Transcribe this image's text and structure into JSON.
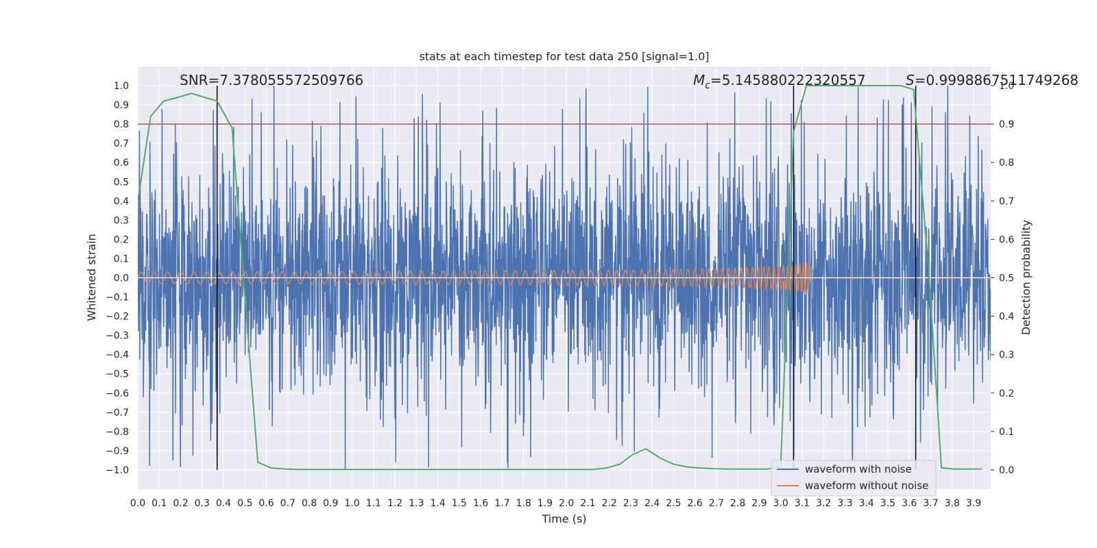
{
  "chart_data": {
    "type": "line",
    "title": "stats at each timestep for test data 250 [signal=1.0]",
    "xlabel": "Time (s)",
    "ylabel": "Whitened strain",
    "y2label": "Detection probability",
    "xlim": [
      0.0,
      3.98
    ],
    "ylim": [
      -1.1,
      1.1
    ],
    "y2lim": [
      -0.05,
      1.05
    ],
    "xticks": [
      "0.0",
      "0.1",
      "0.2",
      "0.3",
      "0.4",
      "0.5",
      "0.6",
      "0.7",
      "0.8",
      "0.9",
      "1.0",
      "1.1",
      "1.2",
      "1.3",
      "1.4",
      "1.5",
      "1.6",
      "1.7",
      "1.8",
      "1.9",
      "2.0",
      "2.1",
      "2.2",
      "2.3",
      "2.4",
      "2.5",
      "2.6",
      "2.7",
      "2.8",
      "2.9",
      "3.0",
      "3.1",
      "3.2",
      "3.3",
      "3.4",
      "3.5",
      "3.6",
      "3.7",
      "3.8",
      "3.9"
    ],
    "yticks": [
      "−1.0",
      "−0.9",
      "−0.8",
      "−0.7",
      "−0.6",
      "−0.5",
      "−0.4",
      "−0.3",
      "−0.2",
      "−0.1",
      "0.0",
      "0.1",
      "0.2",
      "0.3",
      "0.4",
      "0.5",
      "0.6",
      "0.7",
      "0.8",
      "0.9",
      "1.0"
    ],
    "y2ticks": [
      "0.0",
      "0.1",
      "0.2",
      "0.3",
      "0.4",
      "0.5",
      "0.6",
      "0.7",
      "0.8",
      "0.9",
      "1.0"
    ],
    "grid": true,
    "legend_position": "bottom-right",
    "colors": {
      "noise": "#4c72b0",
      "clean": "#dd8452",
      "prob": "#55a868",
      "threshold": "#c44e52",
      "marker": "#000000",
      "background": "#eaeaf2",
      "grid": "#ffffff"
    },
    "series": [
      {
        "name": "waveform with noise",
        "kind": "noise",
        "amplitude_range": [
          -1.0,
          1.0
        ]
      },
      {
        "name": "waveform without noise",
        "kind": "chirp",
        "t_start": 0.0,
        "t_merger": 3.14,
        "start_amplitude": 0.03,
        "merger_amplitude": 0.16
      },
      {
        "name": "Detection probability",
        "kind": "probability",
        "axis": "right",
        "x": [
          0.0,
          0.06,
          0.12,
          0.19,
          0.25,
          0.31,
          0.37,
          0.44,
          0.5,
          0.56,
          0.62,
          0.69,
          0.75,
          0.81,
          0.87,
          0.94,
          1.0,
          1.06,
          1.12,
          1.19,
          1.25,
          1.31,
          1.37,
          1.44,
          1.5,
          1.56,
          1.62,
          1.69,
          1.75,
          1.81,
          1.87,
          1.94,
          2.0,
          2.06,
          2.12,
          2.19,
          2.25,
          2.31,
          2.37,
          2.44,
          2.5,
          2.56,
          2.62,
          2.69,
          2.75,
          2.81,
          2.87,
          2.94,
          3.0,
          3.06,
          3.12,
          3.19,
          3.25,
          3.31,
          3.37,
          3.44,
          3.5,
          3.56,
          3.62,
          3.69,
          3.75,
          3.81,
          3.87,
          3.94
        ],
        "y": [
          0.7,
          0.92,
          0.96,
          0.97,
          0.98,
          0.97,
          0.96,
          0.89,
          0.45,
          0.02,
          0.005,
          0.002,
          0.001,
          0.001,
          0.001,
          0.001,
          0.001,
          0.001,
          0.001,
          0.001,
          0.001,
          0.001,
          0.001,
          0.001,
          0.001,
          0.001,
          0.001,
          0.001,
          0.001,
          0.001,
          0.001,
          0.001,
          0.001,
          0.001,
          0.001,
          0.005,
          0.015,
          0.04,
          0.055,
          0.03,
          0.015,
          0.008,
          0.005,
          0.003,
          0.002,
          0.002,
          0.002,
          0.002,
          0.01,
          0.88,
          1.0,
          1.0,
          1.0,
          1.0,
          1.0,
          1.0,
          1.0,
          1.0,
          0.99,
          0.52,
          0.005,
          0.002,
          0.002,
          0.002
        ]
      }
    ],
    "threshold": 0.8,
    "markers_x": [
      0.37,
      3.06,
      3.63
    ],
    "annotations": {
      "snr": "SNR=7.378055572509766",
      "mc": "=5.145880222320557",
      "mc_symbol": "M",
      "mc_subscript": "c",
      "s": "=0.9998867511749268",
      "s_symbol": "S"
    },
    "legend": [
      "waveform with noise",
      "waveform without noise"
    ]
  }
}
